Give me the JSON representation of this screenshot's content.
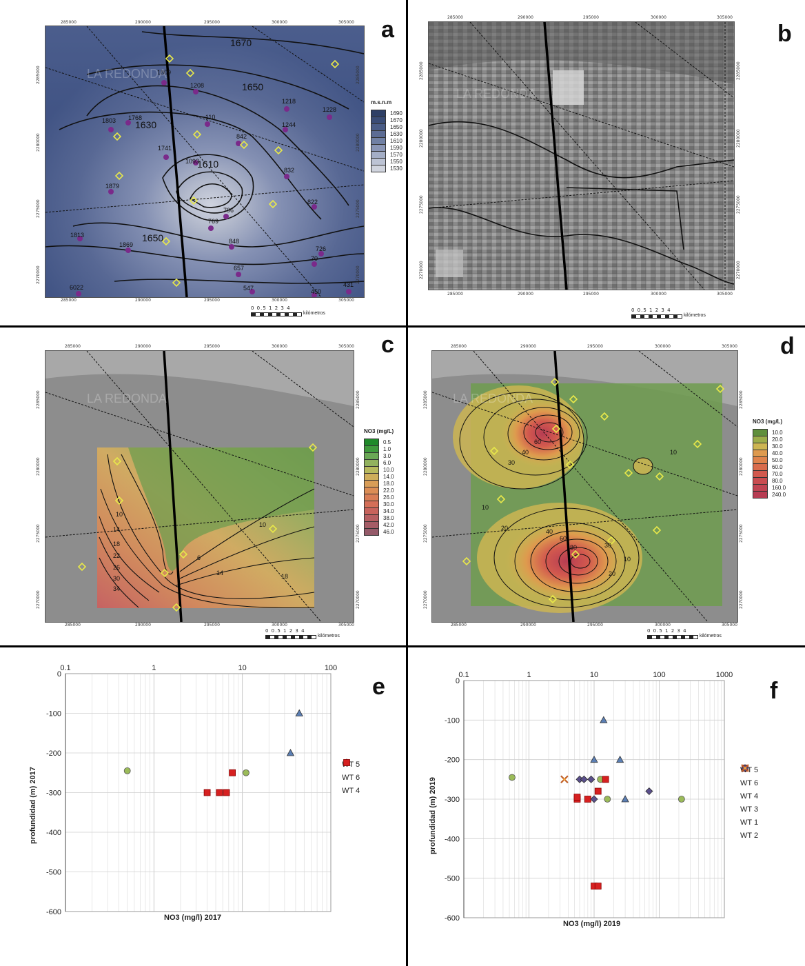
{
  "panels": {
    "a": {
      "letter": "a"
    },
    "b": {
      "letter": "b"
    },
    "c": {
      "letter": "c"
    },
    "d": {
      "letter": "d"
    },
    "e": {
      "letter": "e"
    },
    "f": {
      "letter": "f"
    }
  },
  "map_axis": {
    "x_ticks": [
      "285000",
      "290000",
      "295000",
      "300000",
      "305000"
    ],
    "y_ticks": [
      "2285000",
      "2280000",
      "2275000",
      "2270000"
    ]
  },
  "scalebar": {
    "numbers": "0 0.5 1    2    3    4",
    "unit": "kilómetros"
  },
  "watermark": "LA REDONDA",
  "legend_a": {
    "title": "m.s.n.m",
    "items": [
      {
        "label": "1690",
        "color": "#2e3f66"
      },
      {
        "label": "1670",
        "color": "#3a4c76"
      },
      {
        "label": "1650",
        "color": "#4a5c86"
      },
      {
        "label": "1630",
        "color": "#5c6c94"
      },
      {
        "label": "1610",
        "color": "#7080a4"
      },
      {
        "label": "1590",
        "color": "#8a96b6"
      },
      {
        "label": "1570",
        "color": "#a4aec6"
      },
      {
        "label": "1550",
        "color": "#bcc3d4"
      },
      {
        "label": "1530",
        "color": "#d0d4de"
      }
    ]
  },
  "map_a_labels": {
    "contours": [
      "1670",
      "1650",
      "1630",
      "1610",
      "1650"
    ],
    "wells": [
      "1809",
      "1208",
      "1768",
      "1803",
      "110",
      "1218",
      "1228",
      "1244",
      "842",
      "1741",
      "1093",
      "832",
      "1879",
      "822",
      "796",
      "769",
      "1813",
      "1869",
      "848",
      "657",
      "726",
      "70",
      "547",
      "6022",
      "431",
      "450"
    ]
  },
  "legend_c": {
    "title": "NO3 (mg/L)",
    "items": [
      {
        "label": "0.5",
        "color": "#1f8a2a"
      },
      {
        "label": "1.0",
        "color": "#3f9a3c"
      },
      {
        "label": "3.0",
        "color": "#6aa855"
      },
      {
        "label": "6.0",
        "color": "#92b25e"
      },
      {
        "label": "10.0",
        "color": "#b7b95d"
      },
      {
        "label": "14.0",
        "color": "#cfae5a"
      },
      {
        "label": "18.0",
        "color": "#d99d57"
      },
      {
        "label": "22.0",
        "color": "#dc8d55"
      },
      {
        "label": "26.0",
        "color": "#d97d55"
      },
      {
        "label": "30.0",
        "color": "#d46e57"
      },
      {
        "label": "34.0",
        "color": "#c8635c"
      },
      {
        "label": "38.0",
        "color": "#b75f62"
      },
      {
        "label": "42.0",
        "color": "#a55c66"
      },
      {
        "label": "46.0",
        "color": "#955a69"
      }
    ]
  },
  "map_c_labels": [
    "10",
    "14",
    "18",
    "22",
    "26",
    "30",
    "34",
    "6",
    "14",
    "18",
    "10"
  ],
  "legend_d": {
    "title": "NO3 (mg/L)",
    "items": [
      {
        "label": "10.0",
        "color": "#5f8f3c"
      },
      {
        "label": "20.0",
        "color": "#9cad4a"
      },
      {
        "label": "30.0",
        "color": "#cdb552"
      },
      {
        "label": "40.0",
        "color": "#de9a4e"
      },
      {
        "label": "50.0",
        "color": "#df834c"
      },
      {
        "label": "60.0",
        "color": "#d96c4c"
      },
      {
        "label": "70.0",
        "color": "#d2594e"
      },
      {
        "label": "80.0",
        "color": "#c94c50"
      },
      {
        "label": "160.0",
        "color": "#c04452"
      },
      {
        "label": "240.0",
        "color": "#b73d53"
      }
    ]
  },
  "map_d_labels": [
    "60",
    "40",
    "30",
    "10",
    "20",
    "40",
    "60",
    "80",
    "30",
    "10",
    "20",
    "10"
  ],
  "chart_data": [
    {
      "id": "e",
      "type": "scatter",
      "xscale": "log",
      "xlim": [
        0.1,
        100
      ],
      "ylim": [
        -600,
        0
      ],
      "xticks": [
        "0.1",
        "1",
        "10",
        "100"
      ],
      "yticks": [
        "0",
        "-100",
        "-200",
        "-300",
        "-400",
        "-500",
        "-600"
      ],
      "xlabel": "NO3 (mg/l) 2017",
      "ylabel": "profundidad (m) 2017",
      "series": [
        {
          "name": "WT 5",
          "marker": "triangle",
          "color": "#5b7fb5",
          "points": [
            [
              44,
              -100
            ],
            [
              35,
              -200
            ]
          ]
        },
        {
          "name": "WT 6",
          "marker": "circle",
          "color": "#9bbb59",
          "points": [
            [
              0.5,
              -245
            ],
            [
              11,
              -250
            ]
          ]
        },
        {
          "name": "WT 4",
          "marker": "square",
          "color": "#d62020",
          "points": [
            [
              4,
              -300
            ],
            [
              5.5,
              -300
            ],
            [
              6.6,
              -300
            ],
            [
              7.7,
              -250
            ]
          ]
        }
      ]
    },
    {
      "id": "f",
      "type": "scatter",
      "xscale": "log",
      "xlim": [
        0.1,
        1000
      ],
      "ylim": [
        -600,
        0
      ],
      "xticks": [
        "0.1",
        "1",
        "10",
        "100",
        "1000"
      ],
      "yticks": [
        "0",
        "-100",
        "-200",
        "-300",
        "-400",
        "-500",
        "-600"
      ],
      "xlabel": "NO3 (mg/l) 2019",
      "ylabel": "profundidad (m) 2019",
      "series": [
        {
          "name": "WT 5",
          "marker": "triangle",
          "color": "#5b7fb5",
          "points": [
            [
              14,
              -100
            ],
            [
              10,
              -200
            ],
            [
              25,
              -200
            ],
            [
              30,
              -300
            ]
          ]
        },
        {
          "name": "WT 6",
          "marker": "circle",
          "color": "#9bbb59",
          "points": [
            [
              0.55,
              -245
            ],
            [
              12.5,
              -250
            ],
            [
              16,
              -300
            ],
            [
              220,
              -300
            ]
          ]
        },
        {
          "name": "WT 4",
          "marker": "square",
          "color": "#d62020",
          "points": [
            [
              5.5,
              -300
            ],
            [
              5.5,
              -295
            ],
            [
              8,
              -300
            ],
            [
              11.5,
              -280
            ],
            [
              15,
              -250
            ],
            [
              10,
              -520
            ],
            [
              11.5,
              -520
            ]
          ]
        },
        {
          "name": "WT 3",
          "marker": "diamond",
          "color": "#5a4f8c",
          "points": [
            [
              6,
              -250
            ],
            [
              7,
              -250
            ],
            [
              9,
              -250
            ],
            [
              10,
              -300
            ],
            [
              70,
              -280
            ]
          ]
        },
        {
          "name": "WT 1",
          "marker": "x",
          "color": "#c0612b",
          "points": [
            [
              3.5,
              -250
            ]
          ]
        },
        {
          "name": "WT 2",
          "marker": "dot",
          "color": "#f2a33a",
          "points": [
            [
              3.5,
              -250
            ]
          ]
        }
      ]
    }
  ]
}
